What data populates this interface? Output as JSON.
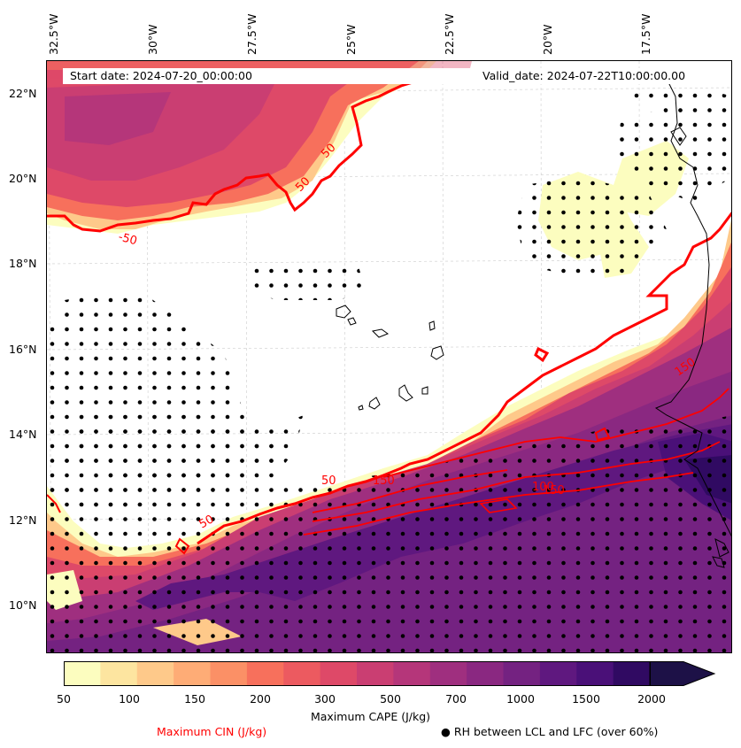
{
  "header": {
    "start_date": "Start date: 2024-07-20_00:00:00",
    "valid_date": "Valid_date: 2024-07-22T10:00:00.00"
  },
  "map": {
    "lon_labels": [
      "32.5°W",
      "30°W",
      "27.5°W",
      "25°W",
      "22.5°W",
      "20°W",
      "17.5°W"
    ],
    "lat_labels": [
      "22°N",
      "20°N",
      "18°N",
      "16°N",
      "14°N",
      "12°N",
      "10°N"
    ],
    "contour_labels": [
      "50",
      "50",
      "-50",
      "150",
      "150",
      "150",
      "100",
      "50",
      "50"
    ],
    "cin_color": "#ff0000",
    "land_outline_color": "#000000"
  },
  "colorbar": {
    "ticks": [
      "50",
      "100",
      "150",
      "200",
      "300",
      "500",
      "700",
      "1000",
      "1500",
      "2000"
    ],
    "label": "Maximum CAPE (J/kg)",
    "colors": [
      "#fcfdbf",
      "#fde5a0",
      "#fec98a",
      "#feac76",
      "#fb9066",
      "#f7705c",
      "#ec5a60",
      "#de4968",
      "#ca3e72",
      "#b5367a",
      "#9f2f7f",
      "#8a2881",
      "#742281",
      "#5f187f",
      "#4a1078",
      "#300a62",
      "#1d1147"
    ]
  },
  "legend": {
    "cin": "Maximum CIN (J/kg)",
    "rh": "● RH between LCL and LFC (over 60%)"
  }
}
